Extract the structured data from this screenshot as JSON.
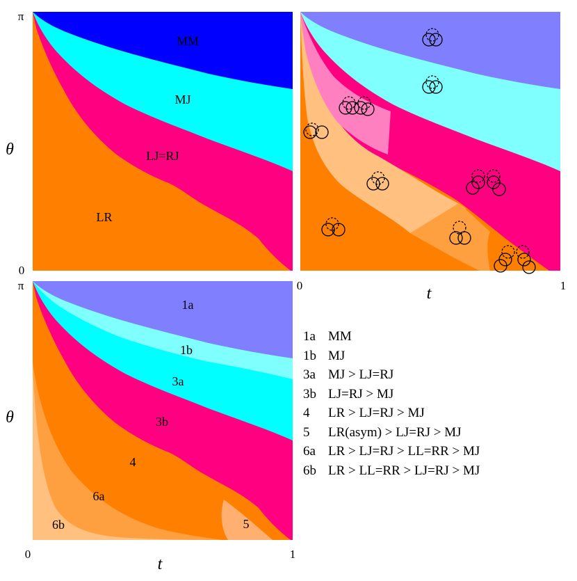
{
  "panel_top_left": {
    "regions": [
      {
        "key": "mm",
        "label": "MM",
        "color": "#0000ff"
      },
      {
        "key": "mj",
        "label": "MJ",
        "color": "#00ffff"
      },
      {
        "key": "ljrj",
        "label": "LJ=RJ",
        "color": "#ff0080"
      },
      {
        "key": "lr",
        "label": "LR",
        "color": "#ff8000"
      }
    ]
  },
  "panel_top_right": {
    "colors": {
      "mm": "#8080ff",
      "mj": "#80ffff",
      "ljrj": "#ff0080",
      "lr": "#ff8000",
      "light_pink": "#ff80c0",
      "light_orange": "#ffc080",
      "mid_orange": "#ffa040"
    }
  },
  "panel_bottom": {
    "regions": [
      {
        "key": "1a",
        "label": "1a",
        "color": "#8080ff"
      },
      {
        "key": "1b",
        "label": "1b",
        "color": "#80ffff"
      },
      {
        "key": "3a",
        "label": "3a",
        "color": "#00ffff"
      },
      {
        "key": "3b",
        "label": "3b",
        "color": "#ff0080"
      },
      {
        "key": "4",
        "label": "4",
        "color": "#ff8000"
      },
      {
        "key": "5",
        "label": "5",
        "color": "#ffb070"
      },
      {
        "key": "6a",
        "label": "6a",
        "color": "#ffa040"
      },
      {
        "key": "6b",
        "label": "6b",
        "color": "#ffc080"
      }
    ]
  },
  "axes": {
    "theta_symbol": "θ",
    "t_symbol": "t",
    "pi_label": "π",
    "zero_label": "0",
    "one_label": "1"
  },
  "legend": [
    {
      "code": "1a",
      "text": "MM"
    },
    {
      "code": "1b",
      "text": "MJ"
    },
    {
      "code": "3a",
      "text": "MJ > LJ=RJ"
    },
    {
      "code": "3b",
      "text": "LJ=RJ > MJ"
    },
    {
      "code": "4",
      "text": "LR > LJ=RJ > MJ"
    },
    {
      "code": "5",
      "text": "LR(asym) > LJ=RJ > MJ"
    },
    {
      "code": "6a",
      "text": "LR > LJ=RJ > LL=RR > MJ"
    },
    {
      "code": "6b",
      "text": "LR > LL=RR > LJ=RJ > MJ"
    }
  ]
}
